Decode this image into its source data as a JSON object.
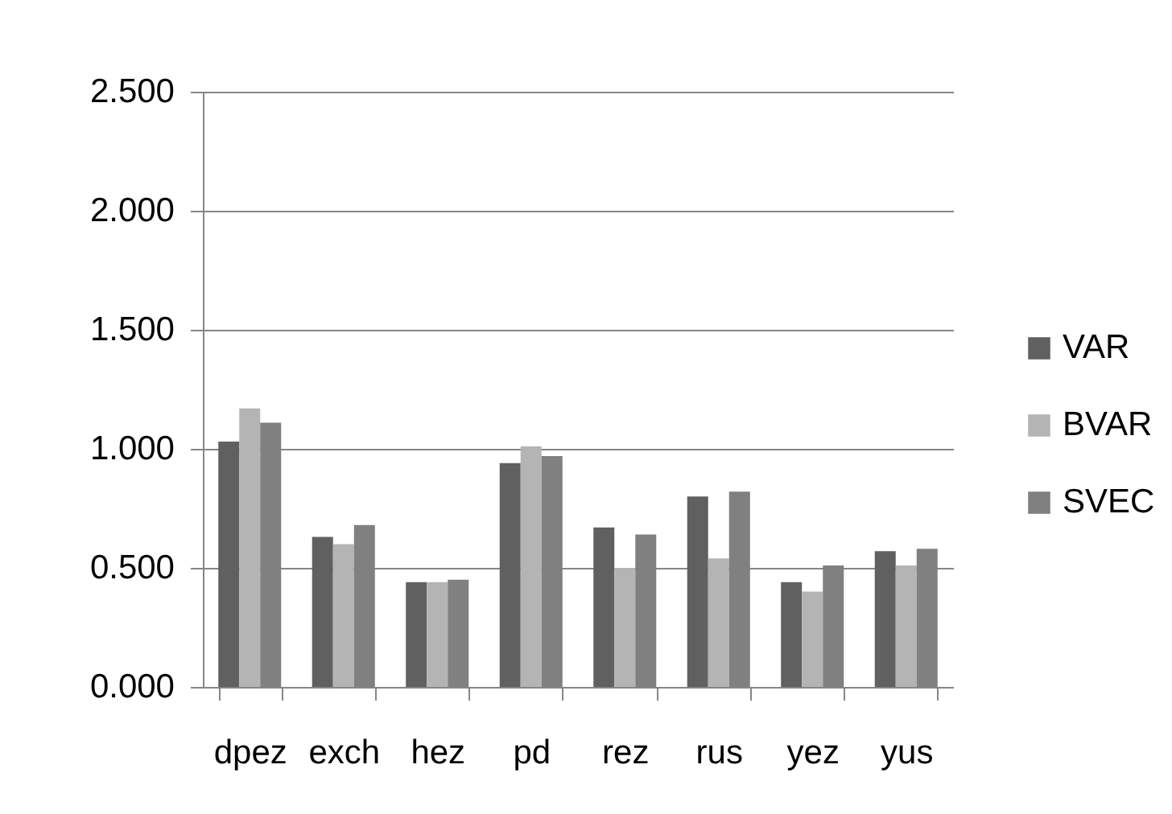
{
  "chart_data": {
    "type": "bar",
    "categories": [
      "dpez",
      "exch",
      "hez",
      "pd",
      "rez",
      "rus",
      "yez",
      "yus"
    ],
    "series": [
      {
        "name": "VAR",
        "color": "#606060",
        "values": [
          1.03,
          0.63,
          0.44,
          0.94,
          0.67,
          0.8,
          0.44,
          0.57
        ]
      },
      {
        "name": "BVAR",
        "color": "#b4b4b4",
        "values": [
          1.17,
          0.6,
          0.44,
          1.01,
          0.5,
          0.54,
          0.4,
          0.51
        ]
      },
      {
        "name": "SVEC",
        "color": "#808080",
        "values": [
          1.11,
          0.68,
          0.45,
          0.97,
          0.64,
          0.82,
          0.51,
          0.58
        ]
      }
    ],
    "ylim": [
      0,
      2.5
    ],
    "yticks": [
      {
        "value": 0,
        "label": "0.000"
      },
      {
        "value": 0.5,
        "label": "0.500"
      },
      {
        "value": 1,
        "label": "1.000"
      },
      {
        "value": 1.5,
        "label": "1.500"
      },
      {
        "value": 2,
        "label": "2.000"
      },
      {
        "value": 2.5,
        "label": "2.500"
      }
    ],
    "grid": "y",
    "legend": "right"
  }
}
